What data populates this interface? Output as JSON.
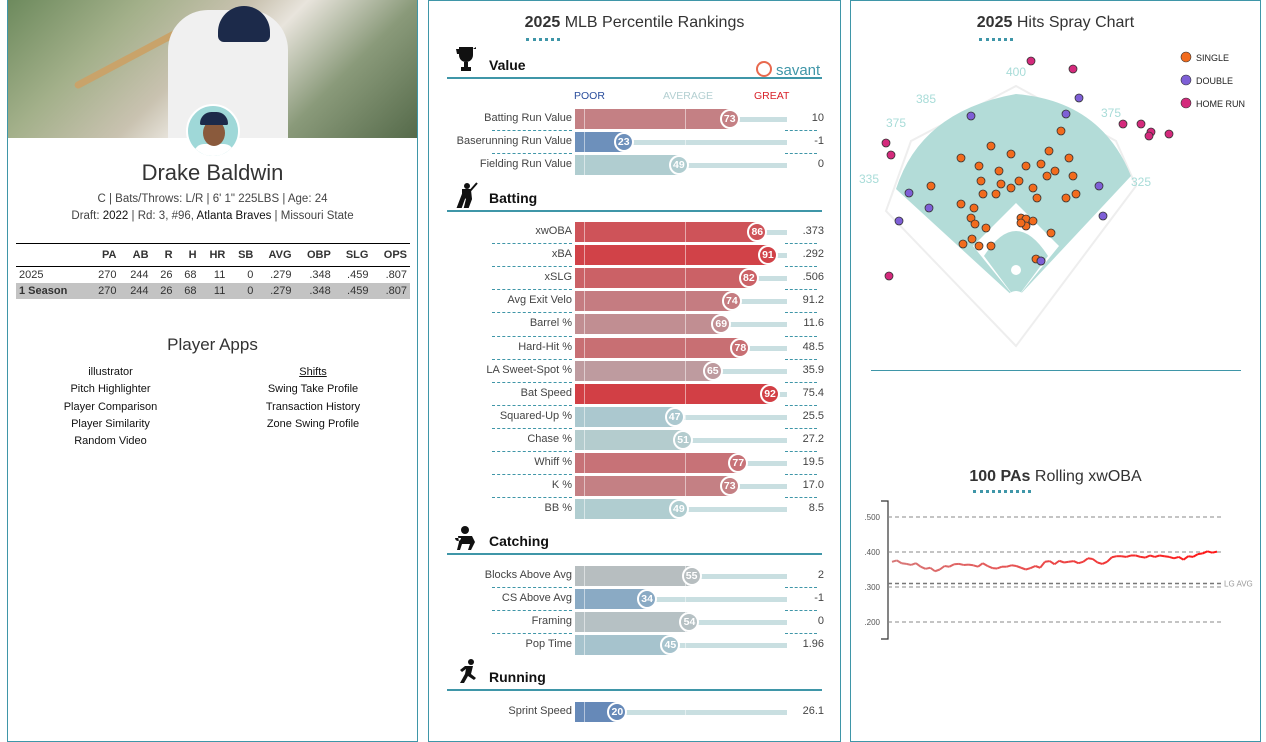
{
  "player": {
    "name": "Drake Baldwin",
    "bio_line": "C | Bats/Throws: L/R | 6' 1\" 225LBS | Age: 24",
    "draft_label": "Draft:",
    "draft_year": "2022",
    "draft_round": "Rd: 3, #96,",
    "draft_team": "Atlanta Braves",
    "draft_school": "Missouri State"
  },
  "stats": {
    "headers": [
      "",
      "PA",
      "AB",
      "R",
      "H",
      "HR",
      "SB",
      "AVG",
      "OBP",
      "SLG",
      "OPS"
    ],
    "rows": [
      [
        "2025",
        "270",
        "244",
        "26",
        "68",
        "11",
        "0",
        ".279",
        ".348",
        ".459",
        ".807"
      ],
      [
        "1 Season",
        "270",
        "244",
        "26",
        "68",
        "11",
        "0",
        ".279",
        ".348",
        ".459",
        ".807"
      ]
    ]
  },
  "apps": {
    "title": "Player Apps",
    "left": [
      "illustrator",
      "Pitch Highlighter",
      "Player Comparison",
      "Player Similarity",
      "Random Video"
    ],
    "right": [
      "Shifts",
      "Swing Take Profile",
      "Transaction History",
      "Zone Swing Profile"
    ]
  },
  "rankings": {
    "title_year": "2025",
    "title_rest": "MLB Percentile Rankings",
    "brand": "savant",
    "scale": {
      "poor": "POOR",
      "average": "AVERAGE",
      "great": "GREAT"
    },
    "colors": {
      "poor": "#325aa8",
      "average": "#b3cfd1",
      "great": "#d8232a"
    },
    "sections": [
      {
        "name": "Value",
        "icon": "trophy-icon",
        "rows": [
          {
            "label": "Batting Run Value",
            "pct": 73,
            "value": "10"
          },
          {
            "label": "Baserunning Run Value",
            "pct": 23,
            "value": "-1"
          },
          {
            "label": "Fielding Run Value",
            "pct": 49,
            "value": "0"
          }
        ]
      },
      {
        "name": "Batting",
        "icon": "batter-icon",
        "rows": [
          {
            "label": "xwOBA",
            "pct": 86,
            "value": ".373"
          },
          {
            "label": "xBA",
            "pct": 91,
            "value": ".292"
          },
          {
            "label": "xSLG",
            "pct": 82,
            "value": ".506"
          },
          {
            "label": "Avg Exit Velo",
            "pct": 74,
            "value": "91.2"
          },
          {
            "label": "Barrel %",
            "pct": 69,
            "value": "11.6"
          },
          {
            "label": "Hard-Hit %",
            "pct": 78,
            "value": "48.5"
          },
          {
            "label": "LA Sweet-Spot %",
            "pct": 65,
            "value": "35.9"
          },
          {
            "label": "Bat Speed",
            "pct": 92,
            "value": "75.4"
          },
          {
            "label": "Squared-Up %",
            "pct": 47,
            "value": "25.5"
          },
          {
            "label": "Chase %",
            "pct": 51,
            "value": "27.2"
          },
          {
            "label": "Whiff %",
            "pct": 77,
            "value": "19.5"
          },
          {
            "label": "K %",
            "pct": 73,
            "value": "17.0"
          },
          {
            "label": "BB %",
            "pct": 49,
            "value": "8.5"
          }
        ]
      },
      {
        "name": "Catching",
        "icon": "catcher-icon",
        "rows": [
          {
            "label": "Blocks Above Avg",
            "pct": 55,
            "value": "2"
          },
          {
            "label": "CS Above Avg",
            "pct": 34,
            "value": "-1"
          },
          {
            "label": "Framing",
            "pct": 54,
            "value": "0"
          },
          {
            "label": "Pop Time",
            "pct": 45,
            "value": "1.96"
          }
        ]
      },
      {
        "name": "Running",
        "icon": "runner-icon",
        "rows": [
          {
            "label": "Sprint Speed",
            "pct": 20,
            "value": "26.1"
          }
        ]
      }
    ]
  },
  "spray": {
    "title_year": "2025",
    "title_rest": "Hits Spray Chart",
    "distances": [
      "400",
      "385",
      "375",
      "375",
      "335",
      "325"
    ],
    "legend": [
      {
        "label": "SINGLE",
        "color": "#f26b1d"
      },
      {
        "label": "DOUBLE",
        "color": "#7e5fd6"
      },
      {
        "label": "HOME RUN",
        "color": "#d42a7c"
      }
    ]
  },
  "rolling": {
    "title_bold": "100 PAs",
    "title_rest": "Rolling xwOBA",
    "lg_avg_label": "LG AVG",
    "chart_data": {
      "type": "line",
      "ylim": [
        0.15,
        0.55
      ],
      "yticks": [
        ".500",
        ".400",
        ".300",
        ".200"
      ],
      "lg_avg": 0.31,
      "values": [
        0.372,
        0.376,
        0.368,
        0.366,
        0.363,
        0.368,
        0.358,
        0.352,
        0.355,
        0.345,
        0.35,
        0.36,
        0.358,
        0.365,
        0.366,
        0.363,
        0.364,
        0.362,
        0.358,
        0.368,
        0.36,
        0.354,
        0.353,
        0.358,
        0.358,
        0.362,
        0.36,
        0.355,
        0.35,
        0.354,
        0.36,
        0.355,
        0.372,
        0.374,
        0.365,
        0.375,
        0.37,
        0.372,
        0.374,
        0.368,
        0.372,
        0.382,
        0.38,
        0.37,
        0.366,
        0.372,
        0.385,
        0.388,
        0.388,
        0.386,
        0.39,
        0.39,
        0.386,
        0.384,
        0.39,
        0.386,
        0.39,
        0.388,
        0.386,
        0.382,
        0.386,
        0.378,
        0.388,
        0.386,
        0.394,
        0.396,
        0.402,
        0.398,
        0.401
      ]
    }
  }
}
